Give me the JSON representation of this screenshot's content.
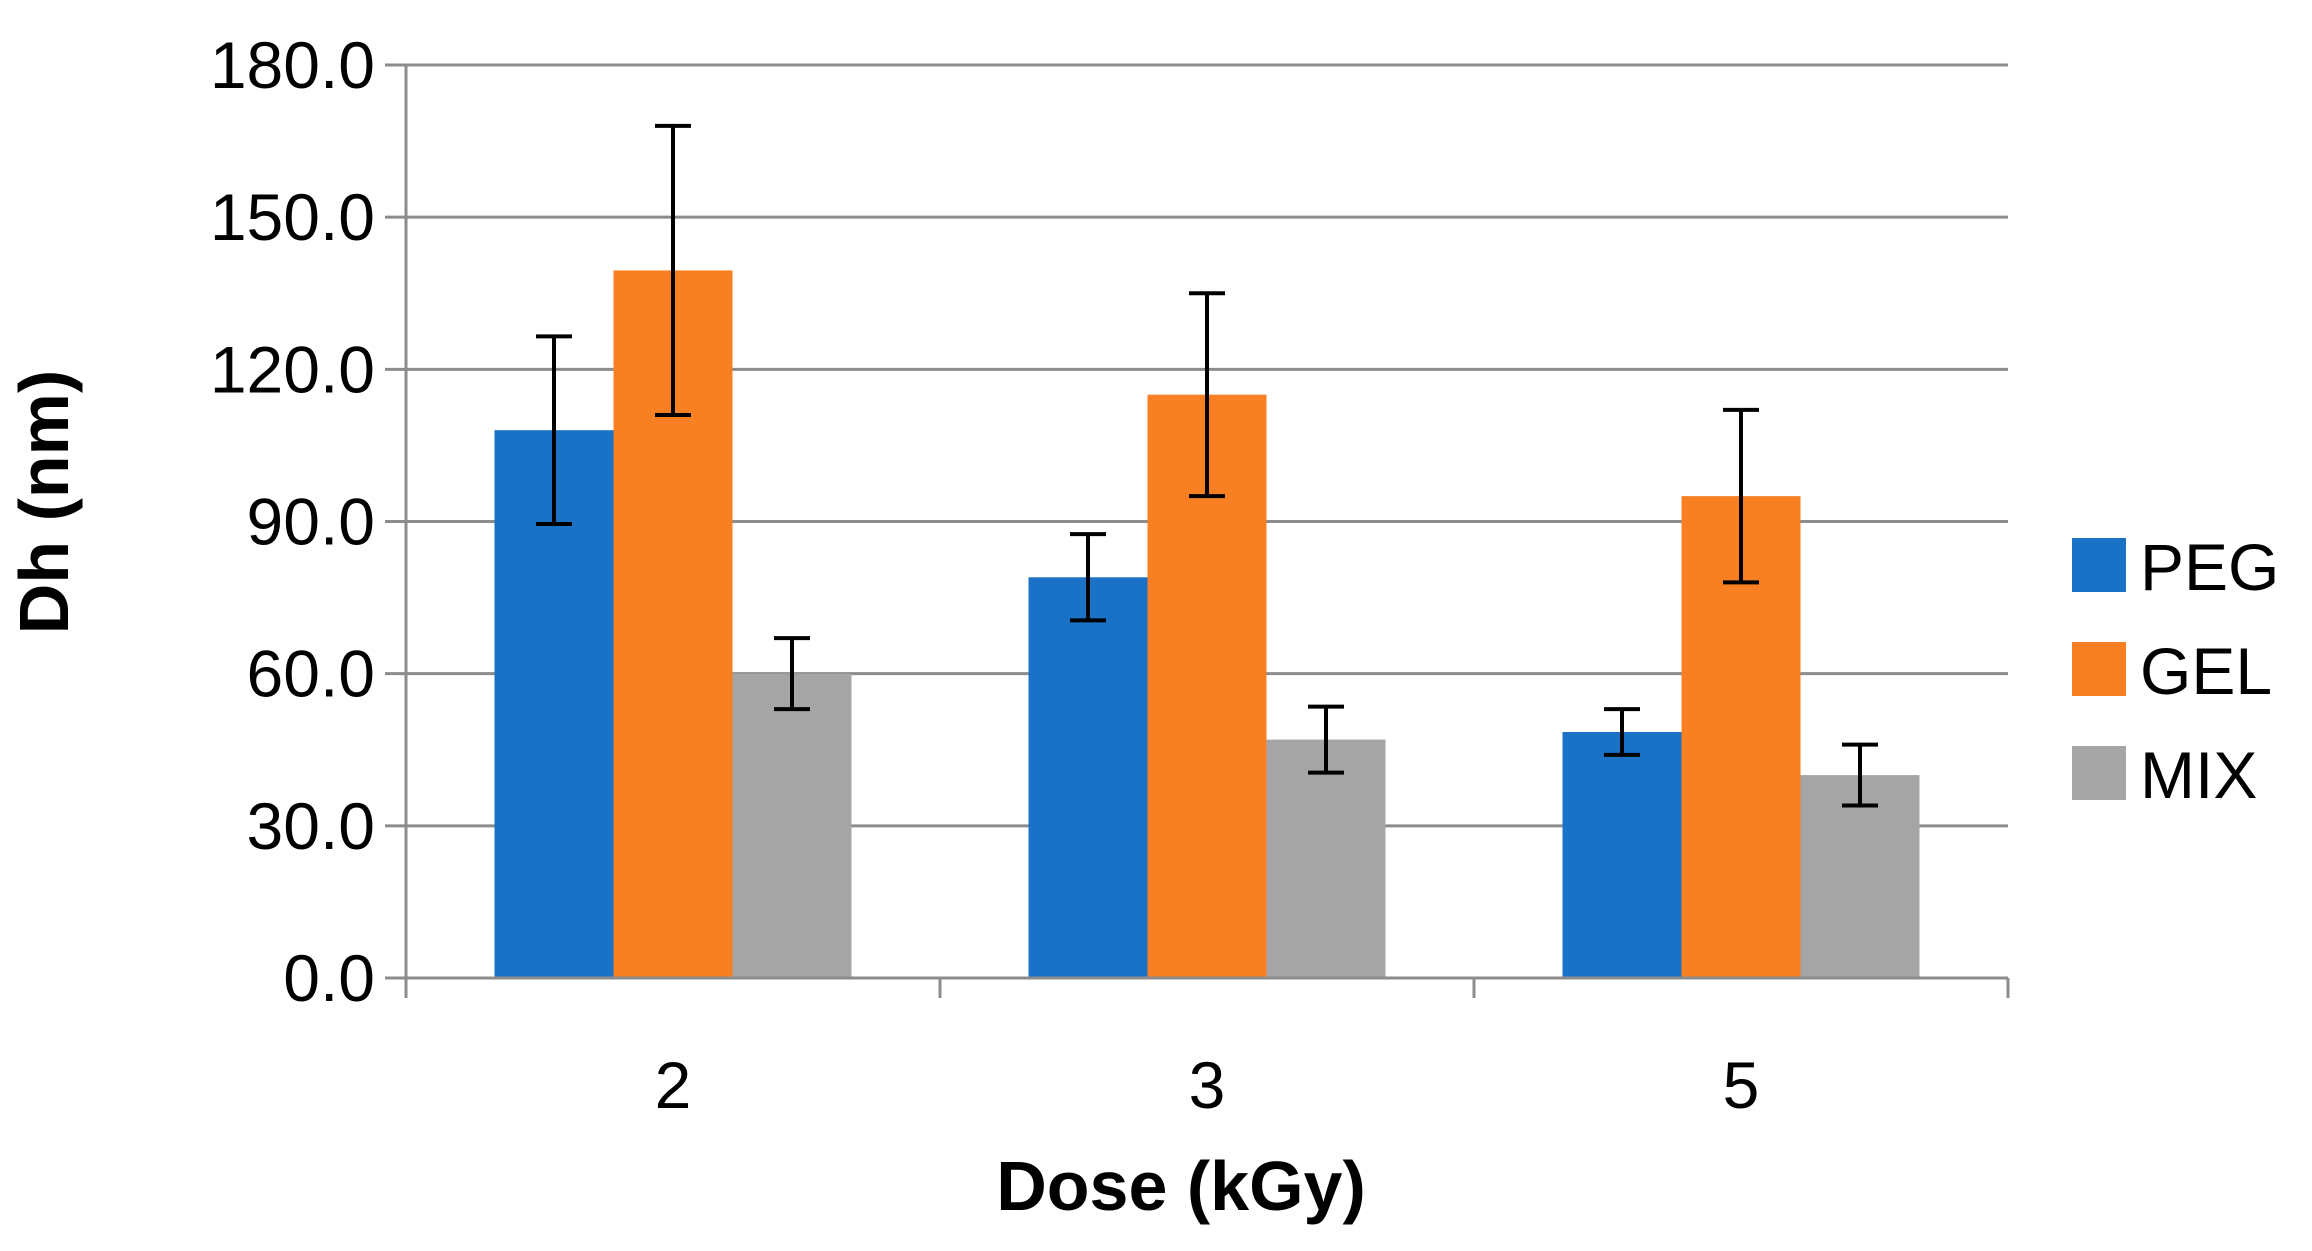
{
  "chart_data": {
    "type": "bar",
    "title": "",
    "xlabel": "Dose (kGy)",
    "ylabel": "Dh (nm)",
    "categories": [
      "2",
      "3",
      "5"
    ],
    "ylim": [
      0,
      180
    ],
    "yticks": [
      "0.0",
      "30.0",
      "60.0",
      "90.0",
      "120.0",
      "150.0",
      "180.0"
    ],
    "ytick_values": [
      0,
      30,
      60,
      90,
      120,
      150,
      180
    ],
    "grid": true,
    "legend_position": "right",
    "series": [
      {
        "name": "PEG",
        "color": "#1a72c7",
        "values": [
          108,
          79,
          48.5
        ],
        "errors": [
          18.5,
          8.5,
          4.5
        ]
      },
      {
        "name": "GEL",
        "color": "#f97f23",
        "values": [
          139.5,
          115,
          95
        ],
        "errors": [
          28.5,
          20,
          17
        ]
      },
      {
        "name": "MIX",
        "color": "#a5a5a5",
        "values": [
          60,
          47,
          40
        ],
        "errors": [
          7,
          6.5,
          6
        ]
      }
    ]
  }
}
